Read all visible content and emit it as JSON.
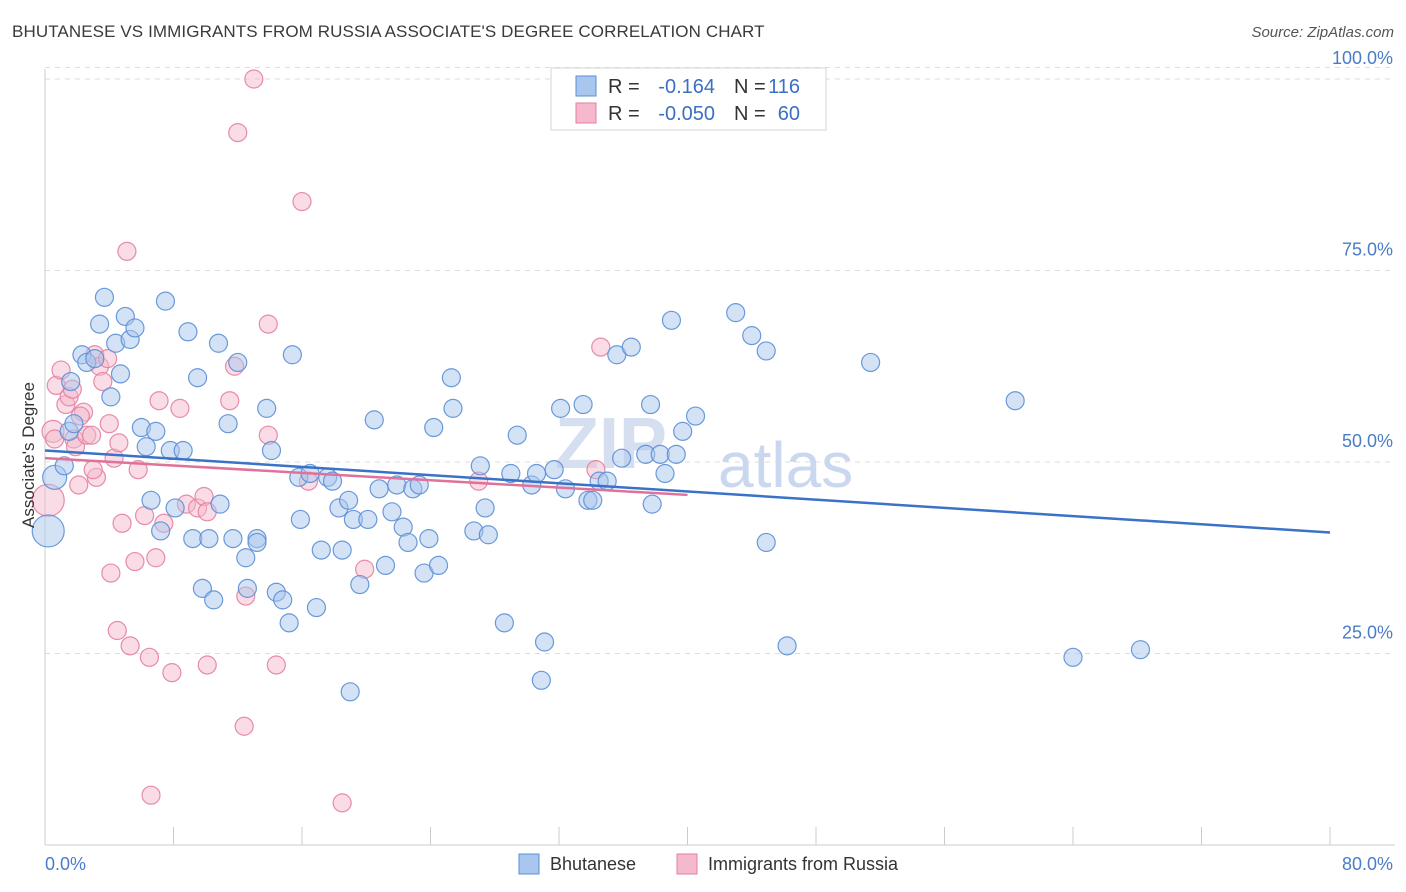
{
  "title": "BHUTANESE VS IMMIGRANTS FROM RUSSIA ASSOCIATE'S DEGREE CORRELATION CHART",
  "source": "Source: ZipAtlas.com",
  "watermark": {
    "zip": "ZIP",
    "atlas": "atlas"
  },
  "colors": {
    "blue_fill": "#a9c6ee",
    "blue_stroke": "#5b8fd6",
    "blue_line": "#3a72c8",
    "pink_fill": "#f4b9cc",
    "pink_stroke": "#e57fa0",
    "pink_line": "#e0719a",
    "grid": "#dddddd",
    "axis_text": "#4a7cc7"
  },
  "legend": {
    "row1": {
      "r_label": "R =",
      "r_value": "-0.164",
      "n_label": "N =",
      "n_value": "116"
    },
    "row2": {
      "r_label": "R =",
      "r_value": "-0.050",
      "n_label": "N =",
      "n_value": "60"
    }
  },
  "bottom_legend": {
    "series1": "Bhutanese",
    "series2": "Immigrants from Russia"
  },
  "chart_data": {
    "type": "scatter",
    "title": "BHUTANESE VS IMMIGRANTS FROM RUSSIA ASSOCIATE'S DEGREE CORRELATION CHART",
    "xlabel": "",
    "ylabel": "Associate's Degree",
    "xlim": [
      0,
      80
    ],
    "ylim": [
      0,
      102
    ],
    "x_tick_labels": {
      "left": "0.0%",
      "right": "80.0%"
    },
    "y_ticks": [
      {
        "value": 25,
        "label": "25.0%"
      },
      {
        "value": 50,
        "label": "50.0%"
      },
      {
        "value": 75,
        "label": "75.0%"
      },
      {
        "value": 100,
        "label": "100.0%"
      }
    ],
    "series": [
      {
        "name": "Bhutanese",
        "color": "#a9c6ee",
        "trend": {
          "x": [
            0,
            80
          ],
          "y": [
            51.5,
            40.8
          ]
        },
        "points": [
          [
            0.2,
            41,
            16
          ],
          [
            0.6,
            48,
            12
          ],
          [
            1.2,
            49.5,
            9
          ],
          [
            1.5,
            54,
            9
          ],
          [
            1.6,
            60.5,
            9
          ],
          [
            1.8,
            55,
            9
          ],
          [
            2.3,
            64,
            9
          ],
          [
            2.6,
            63,
            9
          ],
          [
            3.1,
            63.5,
            9
          ],
          [
            3.4,
            68,
            9
          ],
          [
            3.7,
            71.5,
            9
          ],
          [
            4.1,
            58.5,
            9
          ],
          [
            4.4,
            65.5,
            9
          ],
          [
            4.7,
            61.5,
            9
          ],
          [
            5.0,
            69,
            9
          ],
          [
            5.3,
            66,
            9
          ],
          [
            5.6,
            67.5,
            9
          ],
          [
            6.0,
            54.5,
            9
          ],
          [
            6.3,
            52,
            9
          ],
          [
            6.6,
            45,
            9
          ],
          [
            6.9,
            54,
            9
          ],
          [
            7.2,
            41,
            9
          ],
          [
            7.5,
            71,
            9
          ],
          [
            7.8,
            51.5,
            9
          ],
          [
            8.1,
            44,
            9
          ],
          [
            8.6,
            51.5,
            9
          ],
          [
            8.9,
            67,
            9
          ],
          [
            9.2,
            40,
            9
          ],
          [
            9.5,
            61,
            9
          ],
          [
            9.8,
            33.5,
            9
          ],
          [
            10.2,
            40,
            9
          ],
          [
            10.5,
            32,
            9
          ],
          [
            10.9,
            44.5,
            9
          ],
          [
            10.8,
            65.5,
            9
          ],
          [
            11.4,
            55,
            9
          ],
          [
            11.7,
            40,
            9
          ],
          [
            12.0,
            63,
            9
          ],
          [
            12.5,
            37.5,
            9
          ],
          [
            12.6,
            33.5,
            9
          ],
          [
            13.2,
            40,
            9
          ],
          [
            13.2,
            39.5,
            9
          ],
          [
            13.8,
            57,
            9
          ],
          [
            14.1,
            51.5,
            9
          ],
          [
            14.4,
            33,
            9
          ],
          [
            14.8,
            32,
            9
          ],
          [
            15.2,
            29,
            9
          ],
          [
            15.4,
            64,
            9
          ],
          [
            15.8,
            48,
            9
          ],
          [
            15.9,
            42.5,
            9
          ],
          [
            16.5,
            48.5,
            9
          ],
          [
            16.9,
            31,
            9
          ],
          [
            17.2,
            38.5,
            9
          ],
          [
            17.6,
            48,
            9
          ],
          [
            17.9,
            47.5,
            9
          ],
          [
            18.3,
            44,
            9
          ],
          [
            18.5,
            38.5,
            9
          ],
          [
            18.9,
            45,
            9
          ],
          [
            19.2,
            42.5,
            9
          ],
          [
            19.0,
            20,
            9
          ],
          [
            19.6,
            34,
            9
          ],
          [
            20.1,
            42.5,
            9
          ],
          [
            20.5,
            55.5,
            9
          ],
          [
            20.8,
            46.5,
            9
          ],
          [
            21.2,
            36.5,
            9
          ],
          [
            21.6,
            43.5,
            9
          ],
          [
            21.9,
            47,
            9
          ],
          [
            22.3,
            41.5,
            9
          ],
          [
            22.6,
            39.5,
            9
          ],
          [
            22.9,
            46.5,
            9
          ],
          [
            23.3,
            47,
            9
          ],
          [
            23.6,
            35.5,
            9
          ],
          [
            23.9,
            40,
            9
          ],
          [
            24.2,
            54.5,
            9
          ],
          [
            24.5,
            36.5,
            9
          ],
          [
            25.3,
            61,
            9
          ],
          [
            25.4,
            57,
            9
          ],
          [
            26.7,
            41,
            9
          ],
          [
            27.1,
            49.5,
            9
          ],
          [
            27.4,
            44,
            9
          ],
          [
            27.6,
            40.5,
            9
          ],
          [
            28.6,
            29,
            9
          ],
          [
            29.0,
            48.5,
            9
          ],
          [
            29.4,
            53.5,
            9
          ],
          [
            30.3,
            47,
            9
          ],
          [
            30.6,
            48.5,
            9
          ],
          [
            31.1,
            26.5,
            9
          ],
          [
            30.9,
            21.5,
            9
          ],
          [
            31.7,
            49,
            9
          ],
          [
            32.1,
            57,
            9
          ],
          [
            32.4,
            46.5,
            9
          ],
          [
            33.5,
            57.5,
            9
          ],
          [
            33.8,
            45,
            9
          ],
          [
            34.1,
            45,
            9
          ],
          [
            34.5,
            47.5,
            9
          ],
          [
            35.0,
            47.5,
            9
          ],
          [
            35.6,
            64,
            9
          ],
          [
            35.9,
            50.5,
            9
          ],
          [
            36.5,
            65,
            9
          ],
          [
            37.4,
            51,
            9
          ],
          [
            37.7,
            57.5,
            9
          ],
          [
            37.8,
            44.5,
            9
          ],
          [
            38.3,
            51,
            9
          ],
          [
            38.6,
            48.5,
            9
          ],
          [
            39.0,
            68.5,
            9
          ],
          [
            39.3,
            51,
            9
          ],
          [
            39.7,
            54,
            9
          ],
          [
            40.5,
            56,
            9
          ],
          [
            43.0,
            69.5,
            9
          ],
          [
            44.0,
            66.5,
            9
          ],
          [
            44.9,
            64.5,
            9
          ],
          [
            44.9,
            39.5,
            9
          ],
          [
            46.2,
            26,
            9
          ],
          [
            51.4,
            63,
            9
          ],
          [
            60.4,
            58,
            9
          ],
          [
            64.0,
            24.5,
            9
          ],
          [
            68.2,
            25.5,
            9
          ]
        ]
      },
      {
        "name": "Immigrants from Russia",
        "color": "#f4b9cc",
        "trend": {
          "x": [
            0,
            40
          ],
          "y": [
            50.5,
            45.7
          ]
        },
        "points": [
          [
            0.2,
            45,
            16
          ],
          [
            0.5,
            54,
            11
          ],
          [
            0.6,
            53,
            9
          ],
          [
            0.7,
            60,
            9
          ],
          [
            1.0,
            62,
            9
          ],
          [
            1.3,
            57.5,
            9
          ],
          [
            1.5,
            58.5,
            9
          ],
          [
            1.7,
            59.5,
            9
          ],
          [
            1.8,
            53,
            9
          ],
          [
            1.9,
            52,
            9
          ],
          [
            2.1,
            47,
            9
          ],
          [
            2.4,
            56.5,
            9
          ],
          [
            2.6,
            53.5,
            9
          ],
          [
            2.9,
            53.5,
            9
          ],
          [
            3.1,
            64,
            9
          ],
          [
            3.2,
            48,
            9
          ],
          [
            3.4,
            62.5,
            9
          ],
          [
            3.6,
            60.5,
            9
          ],
          [
            3.9,
            63.5,
            9
          ],
          [
            4.0,
            55,
            9
          ],
          [
            4.1,
            35.5,
            9
          ],
          [
            4.3,
            50.5,
            9
          ],
          [
            4.5,
            28,
            9
          ],
          [
            4.6,
            52.5,
            9
          ],
          [
            4.8,
            42,
            9
          ],
          [
            5.1,
            77.5,
            9
          ],
          [
            5.3,
            26,
            9
          ],
          [
            5.6,
            37,
            9
          ],
          [
            5.8,
            49,
            9
          ],
          [
            6.5,
            24.5,
            9
          ],
          [
            6.6,
            6.5,
            9
          ],
          [
            6.9,
            37.5,
            9
          ],
          [
            7.1,
            58,
            9
          ],
          [
            7.4,
            42,
            9
          ],
          [
            7.9,
            22.5,
            9
          ],
          [
            8.4,
            57,
            9
          ],
          [
            8.8,
            44.5,
            9
          ],
          [
            9.5,
            44,
            9
          ],
          [
            9.9,
            45.5,
            9
          ],
          [
            10.1,
            23.5,
            9
          ],
          [
            10.1,
            43.5,
            9
          ],
          [
            11.5,
            58,
            9
          ],
          [
            11.8,
            62.5,
            9
          ],
          [
            12.0,
            93,
            9
          ],
          [
            12.4,
            15.5,
            9
          ],
          [
            12.5,
            32.5,
            9
          ],
          [
            13.0,
            100,
            9
          ],
          [
            13.9,
            53.5,
            9
          ],
          [
            13.9,
            68,
            9
          ],
          [
            14.4,
            23.5,
            9
          ],
          [
            16.0,
            84,
            9
          ],
          [
            18.5,
            5.5,
            9
          ],
          [
            19.9,
            36,
            9
          ],
          [
            27.0,
            47.5,
            9
          ],
          [
            34.3,
            49,
            9
          ],
          [
            34.6,
            65,
            9
          ],
          [
            16.4,
            47.5,
            9
          ],
          [
            6.2,
            43,
            9
          ],
          [
            2.2,
            56,
            9
          ],
          [
            3.0,
            49,
            9
          ]
        ]
      }
    ]
  }
}
